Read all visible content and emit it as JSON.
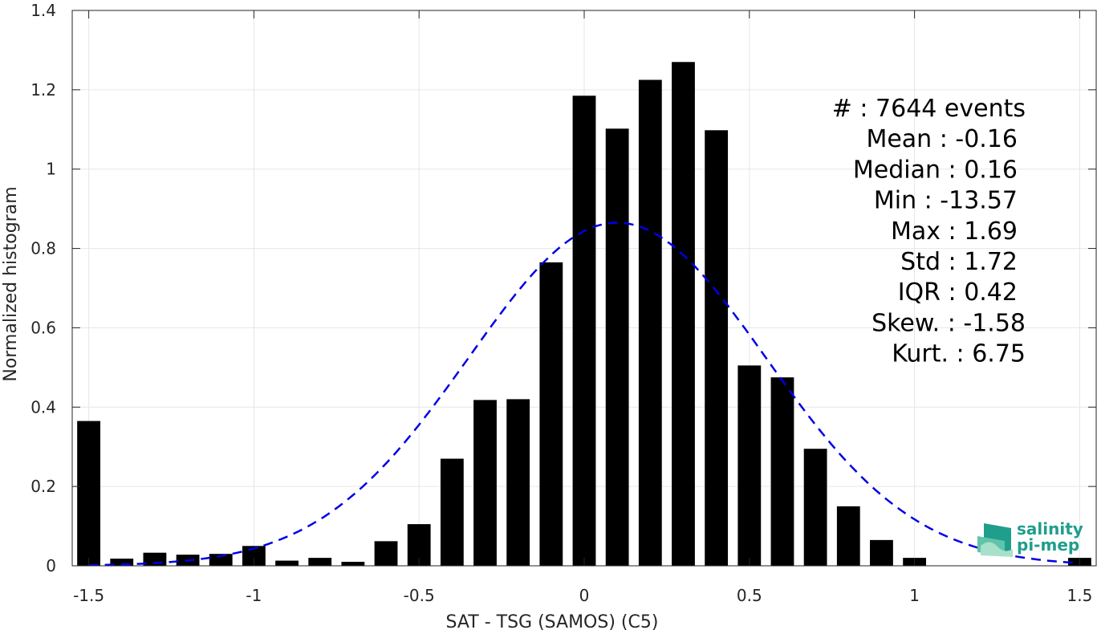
{
  "chart_data": {
    "type": "bar",
    "xlabel": "SAT - TSG (SAMOS) (C5)",
    "ylabel": "Normalized histogram",
    "xlim": [
      -1.55,
      1.55
    ],
    "ylim": [
      0,
      1.4
    ],
    "grid": true,
    "xticks": [
      -1.5,
      -1,
      -0.5,
      0,
      0.5,
      1,
      1.5
    ],
    "xtick_labels": [
      "-1.5",
      "-1",
      "-0.5",
      "0",
      "0.5",
      "1",
      "1.5"
    ],
    "yticks": [
      0,
      0.2,
      0.4,
      0.6,
      0.8,
      1,
      1.2,
      1.4
    ],
    "ytick_labels": [
      "0",
      "0.2",
      "0.4",
      "0.6",
      "0.8",
      "1",
      "1.2",
      "1.4"
    ],
    "bin_width": 0.1,
    "series": [
      {
        "x": [
          -1.5,
          -1.4,
          -1.3,
          -1.2,
          -1.1,
          -1.0,
          -0.9,
          -0.8,
          -0.7,
          -0.6,
          -0.5,
          -0.4,
          -0.3,
          -0.2,
          -0.1,
          0.0,
          0.1,
          0.2,
          0.3,
          0.4,
          0.5,
          0.6,
          0.7,
          0.8,
          0.9,
          1.0,
          1.5
        ],
        "values": [
          0.365,
          0.018,
          0.033,
          0.028,
          0.03,
          0.05,
          0.013,
          0.02,
          0.01,
          0.062,
          0.105,
          0.27,
          0.418,
          0.42,
          0.765,
          1.185,
          1.102,
          1.225,
          1.27,
          1.098,
          0.505,
          0.475,
          0.295,
          0.15,
          0.065,
          0.02,
          0.02
        ],
        "color": "#000000"
      }
    ],
    "fit": {
      "type": "gaussian",
      "style": "dashed",
      "color": "#0000e6",
      "peak": 0.865,
      "mu": 0.1,
      "sigma": 0.45,
      "x_range": [
        -1.5,
        1.5
      ]
    },
    "annotations": [
      "#  : 7644 events",
      "Mean : -0.16",
      "Median : 0.16",
      "Min : -13.57",
      "Max : 1.69",
      "Std : 1.72",
      "IQR : 0.42",
      "Skew. : -1.58",
      "Kurt. : 6.75"
    ],
    "logo": {
      "line1": "salinity",
      "line2": "pi-mep",
      "color": "#1f9e8c"
    }
  }
}
